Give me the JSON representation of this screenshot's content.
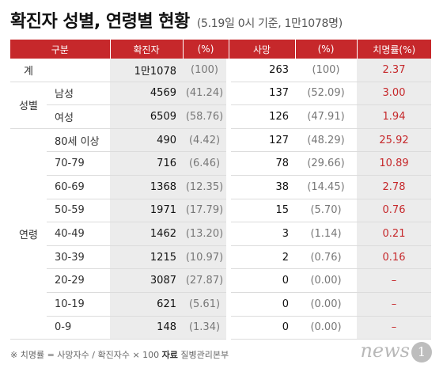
{
  "title": "확진자 성별, 연령별 현황",
  "subtitle": "(5.19일 0시 기준, 1만1078명)",
  "headers": {
    "category": "구분",
    "confirmed": "확진자",
    "confirmed_pct": "(%)",
    "deaths": "사망",
    "deaths_pct": "(%)",
    "fatality": "치명률(%)"
  },
  "groups": {
    "total": "계",
    "gender": "성별",
    "age": "연령"
  },
  "rows": [
    {
      "label": "",
      "confirmed": "1만1078",
      "confirmed_pct": "(100)",
      "deaths": "263",
      "deaths_pct": "(100)",
      "fatality": "2.37"
    },
    {
      "label": "남성",
      "confirmed": "4569",
      "confirmed_pct": "(41.24)",
      "deaths": "137",
      "deaths_pct": "(52.09)",
      "fatality": "3.00"
    },
    {
      "label": "여성",
      "confirmed": "6509",
      "confirmed_pct": "(58.76)",
      "deaths": "126",
      "deaths_pct": "(47.91)",
      "fatality": "1.94"
    },
    {
      "label": "80세 이상",
      "confirmed": "490",
      "confirmed_pct": "(4.42)",
      "deaths": "127",
      "deaths_pct": "(48.29)",
      "fatality": "25.92"
    },
    {
      "label": "70-79",
      "confirmed": "716",
      "confirmed_pct": "(6.46)",
      "deaths": "78",
      "deaths_pct": "(29.66)",
      "fatality": "10.89"
    },
    {
      "label": "60-69",
      "confirmed": "1368",
      "confirmed_pct": "(12.35)",
      "deaths": "38",
      "deaths_pct": "(14.45)",
      "fatality": "2.78"
    },
    {
      "label": "50-59",
      "confirmed": "1971",
      "confirmed_pct": "(17.79)",
      "deaths": "15",
      "deaths_pct": "(5.70)",
      "fatality": "0.76"
    },
    {
      "label": "40-49",
      "confirmed": "1462",
      "confirmed_pct": "(13.20)",
      "deaths": "3",
      "deaths_pct": "(1.14)",
      "fatality": "0.21"
    },
    {
      "label": "30-39",
      "confirmed": "1215",
      "confirmed_pct": "(10.97)",
      "deaths": "2",
      "deaths_pct": "(0.76)",
      "fatality": "0.16"
    },
    {
      "label": "20-29",
      "confirmed": "3087",
      "confirmed_pct": "(27.87)",
      "deaths": "0",
      "deaths_pct": "(0.00)",
      "fatality": "–"
    },
    {
      "label": "10-19",
      "confirmed": "621",
      "confirmed_pct": "(5.61)",
      "deaths": "0",
      "deaths_pct": "(0.00)",
      "fatality": "–"
    },
    {
      "label": "0-9",
      "confirmed": "148",
      "confirmed_pct": "(1.34)",
      "deaths": "0",
      "deaths_pct": "(0.00)",
      "fatality": "–"
    }
  ],
  "footnote": {
    "formula": "※ 치명률 = 사망자수 / 확진자수 × 100",
    "source_label": "자료",
    "source": "질병관리본부"
  },
  "logo": {
    "text": "news",
    "badge": "1"
  },
  "colors": {
    "header_bg": "#c6282b",
    "fatality_text": "#c6282b",
    "shaded_column": "#ececec"
  }
}
